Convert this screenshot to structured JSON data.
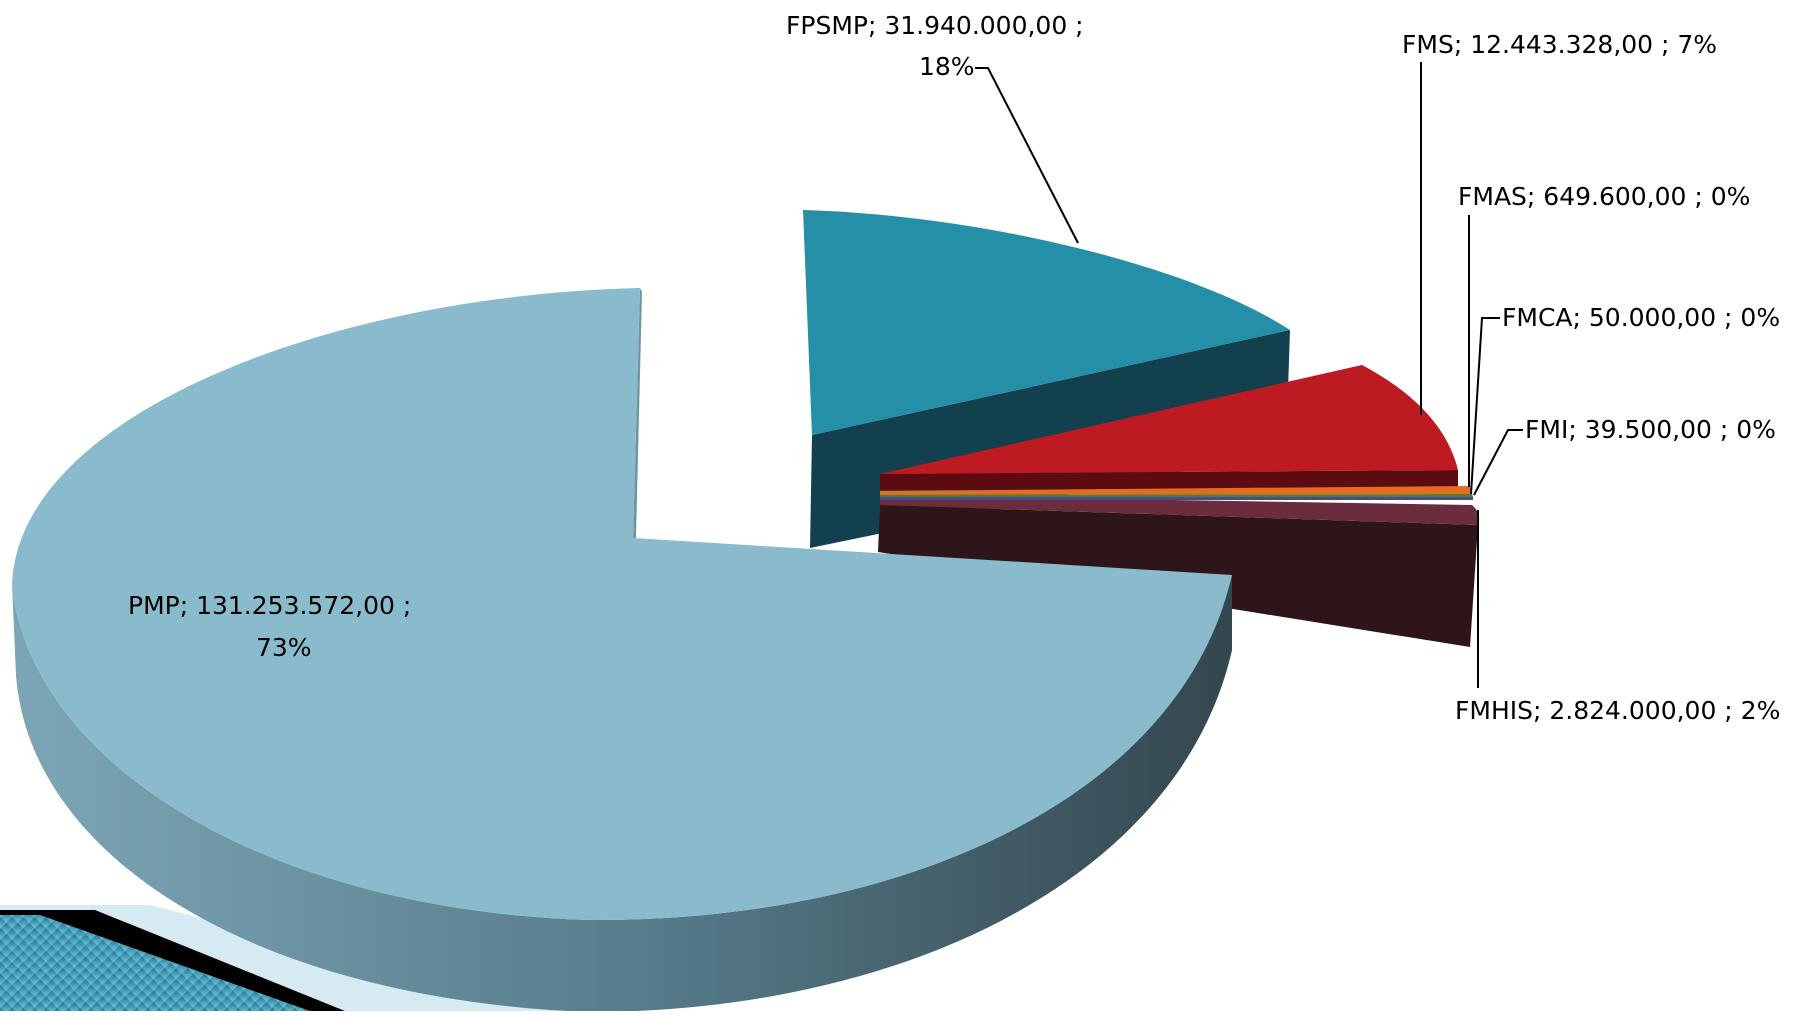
{
  "chart_data": {
    "type": "pie",
    "style": "3d-exploded",
    "slices": [
      {
        "name": "PMP",
        "value": 131253572.0,
        "value_label": "131.253.572,00",
        "percent": "73%",
        "color": "#89bbcd",
        "side_color": "#3f5f6c"
      },
      {
        "name": "FPSMP",
        "value": 31940000.0,
        "value_label": "31.940.000,00",
        "percent": "18%",
        "color": "#268fa8",
        "side_color": "#12404e"
      },
      {
        "name": "FMS",
        "value": 12443328.0,
        "value_label": "12.443.328,00",
        "percent": "7%",
        "color": "#be1a22",
        "side_color": "#5c0c10"
      },
      {
        "name": "FMAS",
        "value": 649600.0,
        "value_label": "649.600,00",
        "percent": "0%",
        "color": "#e46c1e",
        "side_color": "#7a3a10"
      },
      {
        "name": "FMCA",
        "value": 50000.0,
        "value_label": "50.000,00",
        "percent": "0%",
        "color": "#4f7d3a",
        "side_color": "#2a4420"
      },
      {
        "name": "FMI",
        "value": 39500.0,
        "value_label": "39.500,00",
        "percent": "0%",
        "color": "#4c4a8c",
        "side_color": "#2a284c"
      },
      {
        "name": "FMHIS",
        "value": 2824000.0,
        "value_label": "2.824.000,00",
        "percent": "2%",
        "color": "#6b2d3b",
        "side_color": "#2e1519"
      }
    ],
    "labels": [
      {
        "slice": "FPSMP",
        "line1": "FPSMP;  31.940.000,00 ;",
        "line2": "18%"
      },
      {
        "slice": "FMS",
        "line1": "FMS;  12.443.328,00 ; 7%",
        "line2": ""
      },
      {
        "slice": "FMAS",
        "line1": "FMAS;  649.600,00 ; 0%",
        "line2": ""
      },
      {
        "slice": "FMCA",
        "line1": "FMCA;  50.000,00 ; 0%",
        "line2": ""
      },
      {
        "slice": "FMI",
        "line1": "FMI;  39.500,00 ; 0%",
        "line2": ""
      },
      {
        "slice": "FMHIS",
        "line1": "FMHIS;  2.824.000,00 ; 2%",
        "line2": ""
      },
      {
        "slice": "PMP",
        "line1": "PMP;  131.253.572,00 ;",
        "line2": "73%"
      }
    ]
  },
  "decoration": {
    "corner_color_dark": "#1a6f88",
    "corner_color_light": "#5fb9d8"
  }
}
